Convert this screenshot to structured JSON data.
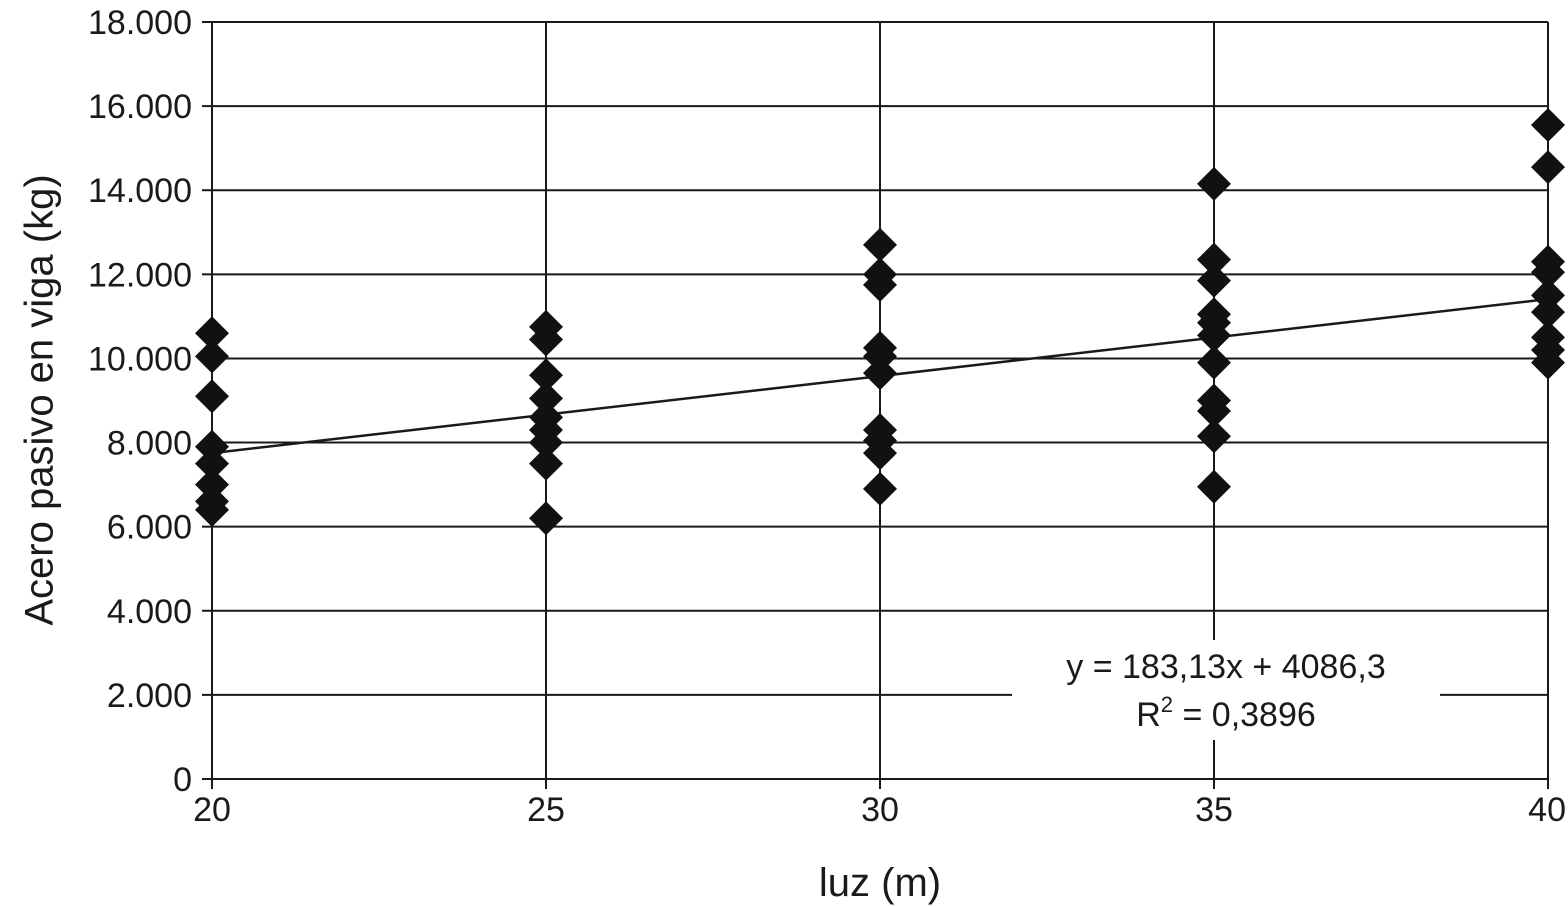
{
  "chart_data": {
    "type": "scatter",
    "title": "",
    "xlabel": "luz (m)",
    "ylabel": "Acero pasivo en viga (kg)",
    "xlim": [
      20,
      40
    ],
    "ylim": [
      0,
      18000
    ],
    "x_ticks": [
      20,
      25,
      30,
      35,
      40
    ],
    "x_tick_labels": [
      "20",
      "25",
      "30",
      "35",
      "40"
    ],
    "y_ticks": [
      0,
      2000,
      4000,
      6000,
      8000,
      10000,
      12000,
      14000,
      16000,
      18000
    ],
    "y_tick_labels": [
      "0",
      "2.000",
      "4.000",
      "6.000",
      "8.000",
      "10.000",
      "12.000",
      "14.000",
      "16.000",
      "18.000"
    ],
    "grid": true,
    "marker": "diamond",
    "marker_color": "#111111",
    "series": [
      {
        "points": [
          [
            20,
            10600
          ],
          [
            20,
            10050
          ],
          [
            20,
            9100
          ],
          [
            20,
            7900
          ],
          [
            20,
            7500
          ],
          [
            20,
            7000
          ],
          [
            20,
            6600
          ],
          [
            20,
            6400
          ],
          [
            25,
            10750
          ],
          [
            25,
            10450
          ],
          [
            25,
            9600
          ],
          [
            25,
            9050
          ],
          [
            25,
            8600
          ],
          [
            25,
            8300
          ],
          [
            25,
            8000
          ],
          [
            25,
            7500
          ],
          [
            25,
            6200
          ],
          [
            30,
            12700
          ],
          [
            30,
            12000
          ],
          [
            30,
            11750
          ],
          [
            30,
            10250
          ],
          [
            30,
            10050
          ],
          [
            30,
            9650
          ],
          [
            30,
            8300
          ],
          [
            30,
            8050
          ],
          [
            30,
            7750
          ],
          [
            30,
            6900
          ],
          [
            35,
            14150
          ],
          [
            35,
            12350
          ],
          [
            35,
            11850
          ],
          [
            35,
            11050
          ],
          [
            35,
            10850
          ],
          [
            35,
            10550
          ],
          [
            35,
            9900
          ],
          [
            35,
            9000
          ],
          [
            35,
            8750
          ],
          [
            35,
            8150
          ],
          [
            35,
            6950
          ],
          [
            40,
            15550
          ],
          [
            40,
            14550
          ],
          [
            40,
            12300
          ],
          [
            40,
            12050
          ],
          [
            40,
            11500
          ],
          [
            40,
            11100
          ],
          [
            40,
            10500
          ],
          [
            40,
            10200
          ],
          [
            40,
            9900
          ]
        ]
      }
    ],
    "trendline": {
      "type": "linear",
      "slope": 183.13,
      "intercept": 4086.3,
      "equation_label": "y = 183,13x + 4086,3",
      "r2_label_prefix": "R",
      "r2_label_exponent": "2",
      "r2_label_value": " = 0,3896"
    }
  }
}
